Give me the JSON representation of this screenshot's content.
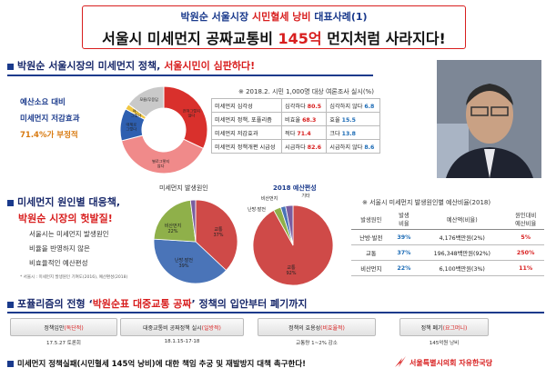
{
  "header": {
    "line1_a": "박원순 서울시장 ",
    "line1_b": "시민혈세 낭비",
    "line1_c": " 대표사례(1)",
    "line2_a": "서울시 미세먼지 공짜교통비 ",
    "line2_b": "145억",
    "line2_c": " 먼지처럼 사라지다!"
  },
  "section1": {
    "heading_a": "박원순 서울시장의 미세먼지 정책, ",
    "heading_b": "서울시민이 심판하다!"
  },
  "efficiency": {
    "line1": "예산소요 대비",
    "line2": "미세먼지 저감효과",
    "line3": "71.4%가 부정적"
  },
  "donut_labels": {
    "a": "전혀그렇지\n않다",
    "b": "별로그렇지\n않다",
    "c": "대체로\n그렇다",
    "d": "매우\n그렇다",
    "e": "모름/무응답"
  },
  "survey": {
    "caption": "※ 2018.2. 시민 1,000명 대상 여론조사 실시(%)",
    "rows": [
      {
        "item": "미세먼지 심각성",
        "a": "심각하다",
        "av": "80.5",
        "b": "심각하지 않다",
        "bv": "6.8"
      },
      {
        "item": "미세먼지 정책, 포퓰리즘",
        "a": "비효율",
        "av": "68.3",
        "b": "효율",
        "bv": "15.5"
      },
      {
        "item": "미세먼지 저감효과",
        "a": "적다",
        "av": "71.4",
        "b": "크다",
        "bv": "13.8"
      },
      {
        "item": "미세먼지 정책개편 시급성",
        "a": "시급하다",
        "av": "82.6",
        "b": "시급하지 않다",
        "bv": "8.6"
      }
    ]
  },
  "section2": {
    "heading_a": "미세먼지 원인별 대응책,",
    "heading_b": "박원순 시장의 헛발질!"
  },
  "sec2_text": {
    "l1": "서울시는 미세먼지 발생원인",
    "l2": "비율을 반영하지 않은",
    "l3": "비효율적인 예산편성"
  },
  "sec2_foot": "* 서울시 : 미세먼지 발생원인 기여도(2016), 예산편성(2018)",
  "pie1": {
    "title": "미세먼지 발생원인",
    "slices": [
      {
        "name": "교통",
        "pct": "37%"
      },
      {
        "name": "난방·발전",
        "pct": "39%"
      },
      {
        "name": "비산먼지",
        "pct": "22%"
      }
    ]
  },
  "pie2": {
    "title": "2018 예산편성",
    "slices": [
      {
        "name": "교통",
        "pct": "92%"
      },
      {
        "name": "비산먼지",
        "pct": "3%"
      },
      {
        "name": "난방·발전",
        "pct": "2%"
      },
      {
        "name": "기타",
        "pct": "3%"
      }
    ]
  },
  "budget": {
    "caption": "※ 서울시 미세먼지 발생원인별 예산비율(2018)",
    "headers": [
      "발생원인",
      "발생\n비율",
      "예산액(비율)",
      "원인대비\n예산비율"
    ],
    "rows": [
      {
        "cause": "난방·발전",
        "rate": "39%",
        "budget": "4,176백만원(2%)",
        "ratio": "5%"
      },
      {
        "cause": "교통",
        "rate": "37%",
        "budget": "196,348백만원(92%)",
        "ratio": "250%"
      },
      {
        "cause": "비산먼지",
        "rate": "22%",
        "budget": "6,100백만원(3%)",
        "ratio": "11%"
      }
    ]
  },
  "section3": {
    "heading_a": "포퓰리즘의 전형 ‘",
    "heading_b": "박원순표 대중교통 공짜",
    "heading_c": "’ 정책의 입안부터 폐기까지"
  },
  "timeline": [
    {
      "label_a": "정책입안",
      "label_b": "(독단적)",
      "date": "17.5.27 토론회"
    },
    {
      "label_a": "대중교통비 공짜정책 실시",
      "label_b": "(일방적)",
      "date": "18.1.15-17·18"
    },
    {
      "label_a": "정책의 효용성",
      "label_b": "(비효율적)",
      "date": "교통량 1~2% 감소"
    },
    {
      "label_a": "정책 폐기",
      "label_b": "(요그머니)",
      "date": "145억원 낭비"
    }
  ],
  "footer": {
    "text": "미세먼지 정책실패(시민혈세 145억 낭비)에 대한 책임 추궁 및 재발방지 대책 촉구한다!",
    "org": "서울특별시의회 자유한국당"
  },
  "donut_chart": {
    "type": "pie",
    "values": [
      {
        "name": "전혀그렇지 않다",
        "pct": 32
      },
      {
        "name": "별로그렇지 않다",
        "pct": 39
      },
      {
        "name": "대체로 그렇다",
        "pct": 12
      },
      {
        "name": "매우 그렇다",
        "pct": 2
      },
      {
        "name": "모름/무응답",
        "pct": 15
      }
    ]
  },
  "chart_data": [
    {
      "type": "pie",
      "title": "미세먼지 발생원인",
      "categories": [
        "교통",
        "난방·발전",
        "비산먼지",
        "기타"
      ],
      "values": [
        37,
        39,
        22,
        2
      ]
    },
    {
      "type": "pie",
      "title": "2018 예산편성",
      "categories": [
        "교통",
        "비산먼지",
        "난방·발전",
        "기타"
      ],
      "values": [
        92,
        3,
        2,
        3
      ]
    }
  ],
  "colors": {
    "navy": "#1a3a8c",
    "red": "#d81e1e",
    "orange": "#d87a10",
    "pie_red": "#cf4a48",
    "pie_blue": "#4a74b8",
    "pie_green": "#8fb04a",
    "pie_purple": "#7a5da0"
  }
}
